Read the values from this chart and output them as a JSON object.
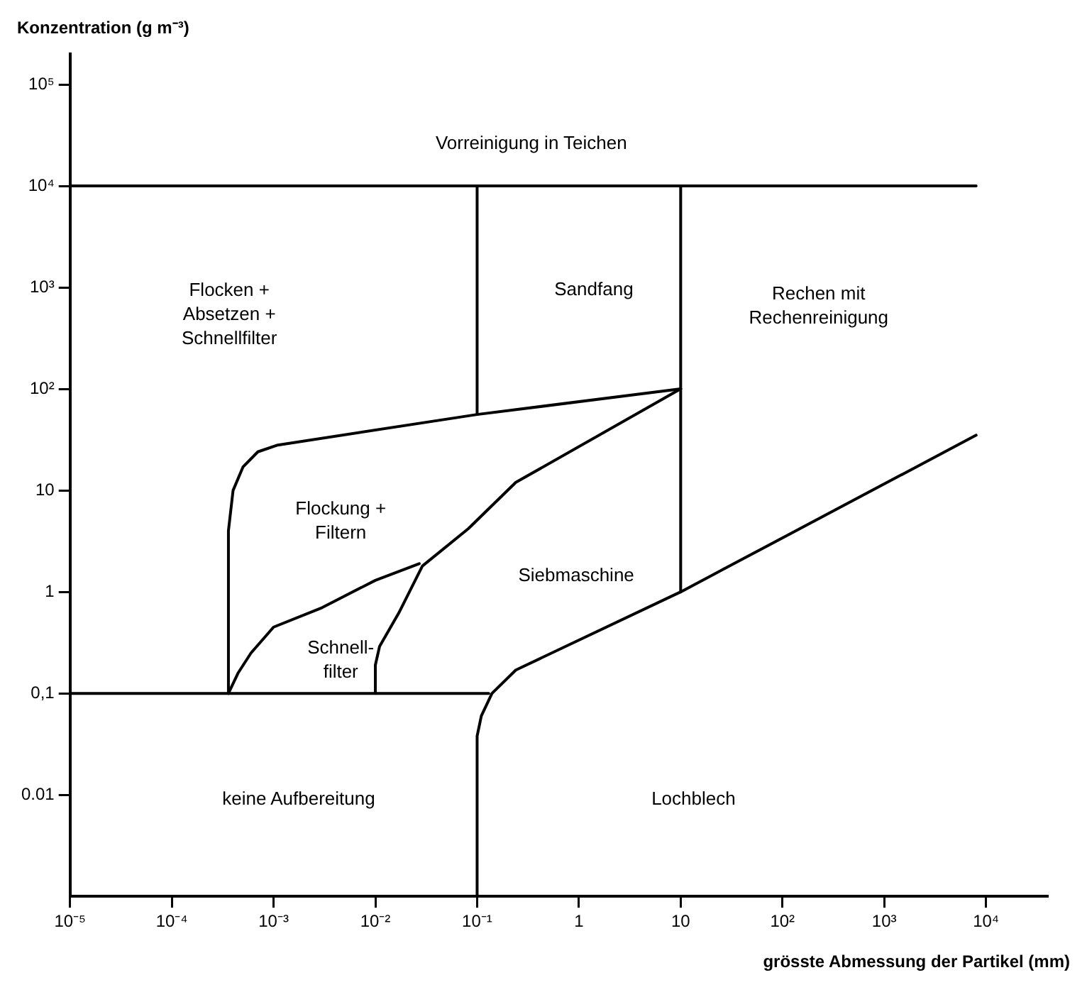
{
  "chart_data": {
    "type": "line",
    "xlabel": "grösste Abmessung der Partikel (mm)",
    "ylabel": "Konzentration (g m⁻³)",
    "log": "xy",
    "legend": false,
    "marker": "none",
    "xlim": [
      1e-05,
      40000
    ],
    "ylim": [
      0.001,
      200000
    ],
    "xticks": [
      {
        "value": 1e-05,
        "label": "10⁻⁵"
      },
      {
        "value": 0.0001,
        "label": "10⁻⁴"
      },
      {
        "value": 0.001,
        "label": "10⁻³"
      },
      {
        "value": 0.01,
        "label": "10⁻²"
      },
      {
        "value": 0.1,
        "label": "10⁻¹"
      },
      1,
      10,
      {
        "value": 100,
        "label": "10²"
      },
      {
        "value": 1000,
        "label": "10³"
      },
      {
        "value": 10000,
        "label": "10⁴"
      }
    ],
    "yticks": [
      {
        "value": 0.01,
        "label": "0.01"
      },
      {
        "value": 0.1,
        "label": "0,1"
      },
      1,
      10,
      {
        "value": 100,
        "label": "10²"
      },
      {
        "value": 1000,
        "label": "10³"
      },
      {
        "value": 10000,
        "label": "10⁴"
      },
      {
        "value": 100000,
        "label": "10⁵"
      }
    ],
    "series": [
      {
        "color": "#000000",
        "x": [
          1e-05,
          8000
        ],
        "values": [
          10000,
          10000
        ]
      },
      {
        "color": "#000000",
        "x": [
          0.1,
          0.1
        ],
        "values": [
          10000,
          56
        ]
      },
      {
        "color": "#000000",
        "x": [
          10,
          10
        ],
        "values": [
          10000,
          1
        ]
      },
      {
        "color": "#000000",
        "x": [
          0.00036,
          0.00036,
          0.0004,
          0.0005,
          0.0007,
          0.0011,
          0.1,
          10
        ],
        "values": [
          0.1,
          4,
          10,
          17,
          24,
          28,
          56,
          100
        ]
      },
      {
        "color": "#000000",
        "x": [
          0.00036,
          0.00045,
          0.0006,
          0.001,
          0.003,
          0.01,
          0.027
        ],
        "values": [
          0.1,
          0.16,
          0.25,
          0.45,
          0.7,
          1.3,
          1.9
        ]
      },
      {
        "color": "#000000",
        "x": [
          0.01,
          0.01,
          0.011,
          0.017,
          0.029,
          0.082,
          0.24,
          10
        ],
        "values": [
          0.1,
          0.19,
          0.29,
          0.62,
          1.8,
          4.2,
          12,
          100
        ]
      },
      {
        "color": "#000000",
        "x": [
          1e-05,
          0.13
        ],
        "values": [
          0.1,
          0.1
        ]
      },
      {
        "color": "#000000",
        "x": [
          0.1,
          0.1,
          0.11,
          0.14,
          0.24,
          10,
          8000
        ],
        "values": [
          0.001,
          0.038,
          0.06,
          0.1,
          0.17,
          1,
          35
        ]
      }
    ],
    "annotations": [
      "Vorreinigung in Teichen",
      "Flocken +\nAbsetzen +\nSchnellfilter",
      "Sandfang",
      "Rechen mit\nRechenreinigung",
      "Flockung +\nFiltern",
      "Schnell-\nfilter",
      "Siebmaschine",
      "keine Aufbereitung",
      "Lochblech"
    ]
  }
}
